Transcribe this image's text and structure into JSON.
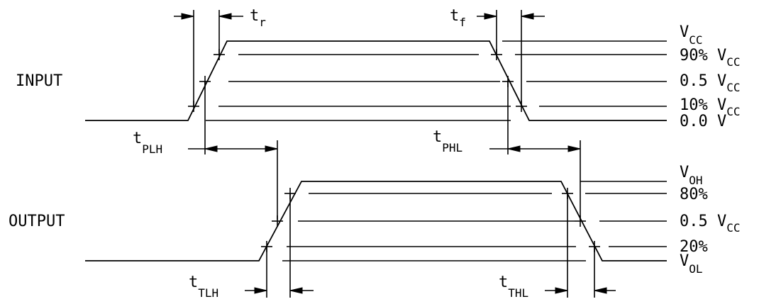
{
  "signals": {
    "input": "INPUT",
    "output": "OUTPUT"
  },
  "input_levels": {
    "vcc": {
      "main": "V",
      "sub": "CC"
    },
    "p90": {
      "main": "90% V",
      "sub": "CC"
    },
    "p50": {
      "main": "0.5 V",
      "sub": "CC"
    },
    "p10": {
      "main": "10% V",
      "sub": "CC"
    },
    "zero": {
      "main": "0.0 V",
      "sub": ""
    }
  },
  "output_levels": {
    "voh": {
      "main": "V",
      "sub": "OH"
    },
    "p80": {
      "main": "80%",
      "sub": ""
    },
    "p50": {
      "main": "0.5 V",
      "sub": "CC"
    },
    "p20": {
      "main": "20%",
      "sub": ""
    },
    "vol": {
      "main": "V",
      "sub": "OL"
    }
  },
  "timing_labels": {
    "tr": {
      "main": "t",
      "sub": "r"
    },
    "tf": {
      "main": "t",
      "sub": "f"
    },
    "tplh": {
      "main": "t",
      "sub": "PLH"
    },
    "tphl": {
      "main": "t",
      "sub": "PHL"
    },
    "ttlh": {
      "main": "t",
      "sub": "TLH"
    },
    "tthl": {
      "main": "t",
      "sub": "THL"
    }
  }
}
